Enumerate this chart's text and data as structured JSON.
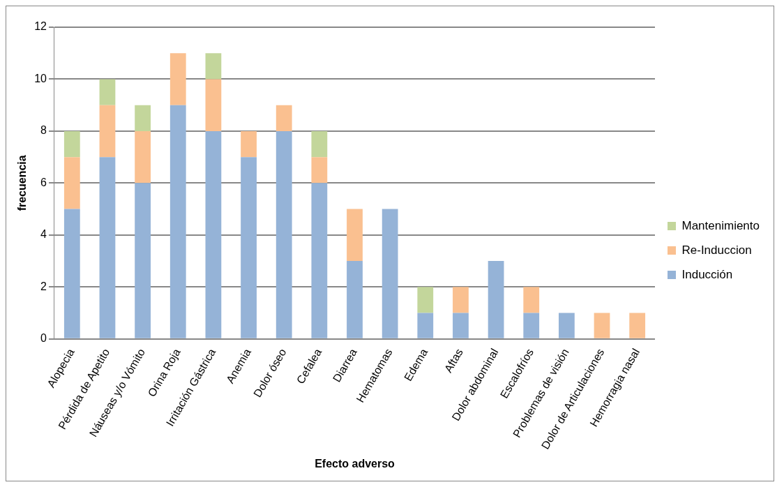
{
  "chart_data": {
    "type": "bar",
    "xlabel": "Efecto adverso",
    "ylabel": "frecuencia",
    "stacked": true,
    "grid": "y",
    "legend": "right",
    "categories": [
      "Alopecia",
      "Pérdida de Apetito",
      "Náuseas y/o Vómito",
      "Orina Roja",
      "Irritación Gástrica",
      "Anemia",
      "Dolor óseo",
      "Cefalea",
      "Diarrea",
      "Hematomas",
      "Edema",
      "Aftas",
      "Dolor abdominal",
      "Escalofríos",
      "Problemas de visión",
      "Dolor de Articulaciones",
      "Hemorragia nasal"
    ],
    "ylim": [
      0,
      12
    ],
    "yticks": [
      0,
      2,
      4,
      6,
      8,
      10,
      12
    ],
    "series": [
      {
        "name": "Inducción",
        "color": "#95b3d7",
        "values": [
          5,
          7,
          6,
          9,
          8,
          7,
          8,
          6,
          3,
          5,
          1,
          1,
          3,
          1,
          1,
          0,
          0
        ]
      },
      {
        "name": "Re-Induccion",
        "color": "#fac090",
        "values": [
          2,
          2,
          2,
          2,
          2,
          1,
          1,
          1,
          2,
          0,
          0,
          1,
          0,
          1,
          0,
          1,
          1
        ]
      },
      {
        "name": "Mantenimiento",
        "color": "#c3d69b",
        "values": [
          1,
          1,
          1,
          0,
          1,
          0,
          0,
          1,
          0,
          0,
          1,
          0,
          0,
          0,
          0,
          0,
          0
        ]
      }
    ]
  }
}
